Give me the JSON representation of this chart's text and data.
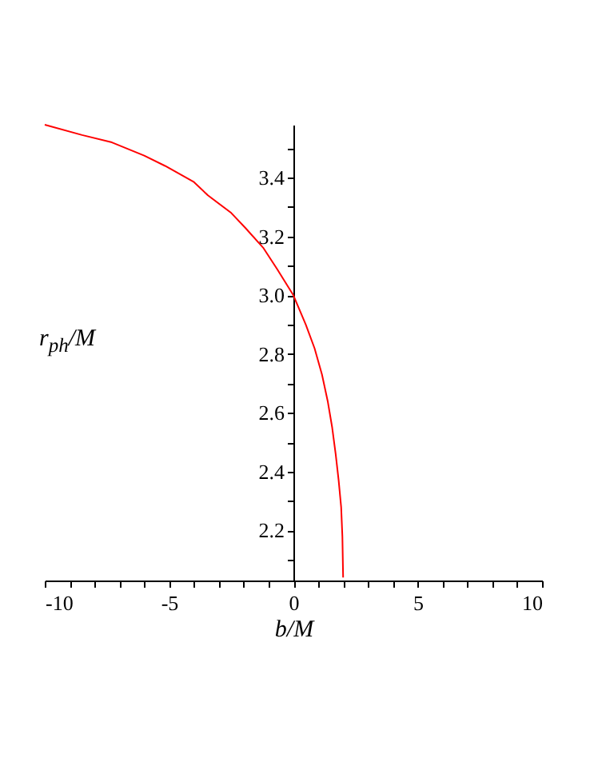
{
  "chart_data": {
    "type": "line",
    "xlabel": "b/M",
    "ylabel": "r$_{ph}$/M",
    "x": [
      -10,
      -8.5,
      -7.3,
      -6,
      -5.16,
      -4,
      -3.44,
      -2.5,
      -1.94,
      -1.2,
      -0.66,
      0,
      0.5,
      0.85,
      1.15,
      1.38,
      1.56,
      1.7,
      1.82,
      1.92,
      1.97,
      2.0
    ],
    "series": [
      {
        "color": "#ff0000",
        "values": [
          3.58,
          3.545,
          3.52,
          3.475,
          3.44,
          3.385,
          3.34,
          3.28,
          3.23,
          3.16,
          3.09,
          3.0,
          2.9,
          2.82,
          2.73,
          2.64,
          2.55,
          2.46,
          2.37,
          2.28,
          2.18,
          2.04
        ]
      }
    ],
    "xlim": [
      -10,
      10
    ],
    "ylim": [
      2.03,
      3.58
    ],
    "xticks": [
      -10,
      {
        "value": -9,
        "label": null
      },
      {
        "value": -8,
        "label": null
      },
      {
        "value": -7,
        "label": null
      },
      {
        "value": -6,
        "label": null
      },
      -5,
      {
        "value": -4,
        "label": null
      },
      {
        "value": -3,
        "label": null
      },
      {
        "value": -2,
        "label": null
      },
      {
        "value": -1,
        "label": null
      },
      0,
      {
        "value": 1,
        "label": null
      },
      {
        "value": 2,
        "label": null
      },
      {
        "value": 3,
        "label": null
      },
      {
        "value": 4,
        "label": null
      },
      5,
      {
        "value": 6,
        "label": null
      },
      {
        "value": 7,
        "label": null
      },
      {
        "value": 8,
        "label": null
      },
      {
        "value": 9,
        "label": null
      },
      10
    ],
    "yticks": [
      {
        "value": 2.1,
        "label": null
      },
      2.2,
      {
        "value": 2.3,
        "label": null
      },
      2.4,
      {
        "value": 2.5,
        "label": null
      },
      2.6,
      {
        "value": 2.7,
        "label": null
      },
      2.8,
      {
        "value": 2.9,
        "label": null
      },
      {
        "value": 3,
        "label": "3.0"
      },
      {
        "value": 3.1,
        "label": null
      },
      3.2,
      {
        "value": 3.3,
        "label": null
      },
      3.4,
      {
        "value": 3.5,
        "label": null
      }
    ],
    "grid": false,
    "legend": false,
    "marker": "none",
    "line_style": "solid"
  }
}
